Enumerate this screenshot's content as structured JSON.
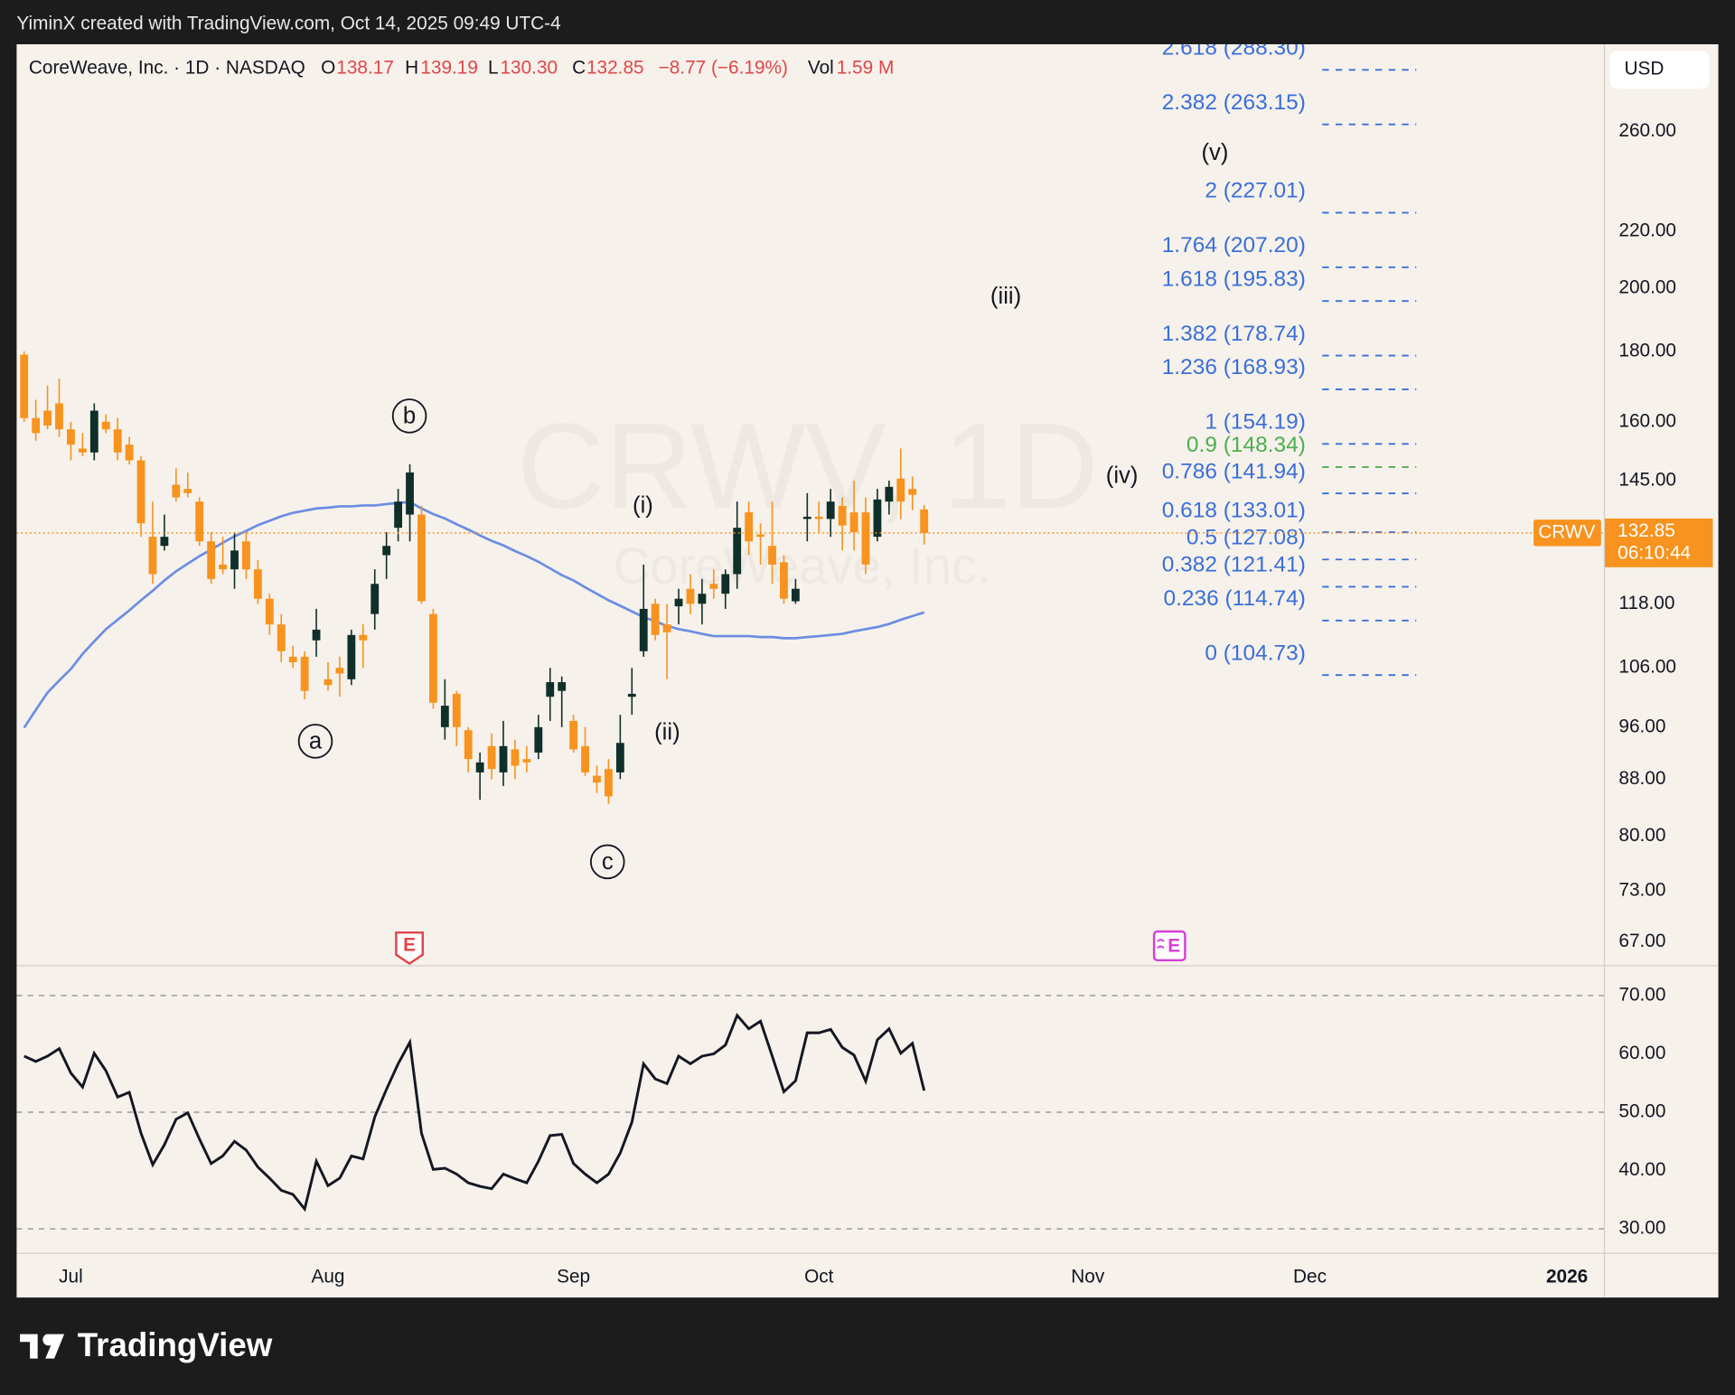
{
  "header": {
    "attribution": "YiminX created with TradingView.com, Oct 14, 2025 09:49 UTC-4"
  },
  "legend": {
    "name": "CoreWeave, Inc. · 1D · NASDAQ",
    "o_key": "O",
    "o": "138.17",
    "h_key": "H",
    "h": "139.19",
    "l_key": "L",
    "l": "130.30",
    "c_key": "C",
    "c": "132.85",
    "change": "−8.77 (−6.19%)",
    "vol_key": "Vol",
    "vol": "1.59 M"
  },
  "currency": "USD",
  "watermark": {
    "symbol": "CRWV, 1D",
    "name": "CoreWeave, Inc."
  },
  "price_tag": {
    "symbol": "CRWV",
    "price": 132.85,
    "countdown": "06:10:44",
    "color": "#f7931e"
  },
  "events": [
    "E",
    "E"
  ],
  "footer": {
    "brand": "TradingView"
  },
  "chart_data": [
    {
      "type": "candlestick",
      "log_scale": true,
      "up_color": "#0f2f2a",
      "down_color": "#f7931e",
      "open": [
        179,
        161,
        163,
        165,
        158,
        153,
        152,
        160,
        158,
        154,
        150,
        132,
        130,
        144,
        143,
        140,
        131,
        126,
        125,
        131,
        125,
        119,
        114,
        108,
        108,
        111,
        104,
        106,
        104,
        112,
        116,
        128,
        134,
        137,
        137,
        116,
        96,
        101.5,
        95.5,
        89,
        93,
        89,
        92.5,
        91,
        92,
        101,
        102,
        97,
        93,
        88.5,
        89.5,
        89,
        101,
        109,
        118,
        114,
        117.5,
        121,
        118,
        122,
        120,
        124,
        137.5,
        132.5,
        130,
        126.5,
        118.5,
        136,
        136.5,
        136,
        139,
        137.5,
        137.5,
        132,
        140,
        145.5,
        143,
        138.17
      ],
      "high": [
        180,
        166,
        170,
        172,
        160,
        157,
        165,
        162,
        161,
        156,
        151,
        140,
        137,
        148,
        147,
        141,
        133,
        132,
        133,
        133,
        127,
        120,
        116,
        110,
        109,
        117,
        107,
        108,
        113,
        114,
        125,
        133,
        143,
        149,
        139,
        117,
        104,
        102,
        96,
        92,
        95,
        97,
        94,
        93,
        98,
        106,
        104.5,
        98,
        96,
        90,
        91,
        98,
        106,
        126,
        119,
        118,
        121,
        124,
        123,
        125,
        125,
        140,
        140,
        135,
        140,
        128,
        123,
        142,
        140,
        143,
        141,
        145,
        141,
        143,
        145,
        153,
        146,
        139.19
      ],
      "low": [
        160,
        155,
        158,
        156,
        150,
        151,
        150,
        157,
        150,
        149,
        132,
        122,
        129,
        140,
        141,
        130,
        122,
        124,
        121,
        123,
        118,
        112,
        107,
        106,
        100.6,
        108,
        102,
        101,
        103,
        106,
        113,
        123,
        131,
        131,
        118,
        99,
        94,
        93,
        89,
        85,
        88,
        87,
        88,
        89,
        91,
        97,
        96,
        92,
        88.5,
        86,
        84.4,
        88,
        98,
        108,
        111,
        104,
        114,
        116,
        114,
        119,
        117,
        121,
        128,
        126,
        122,
        118,
        118,
        131,
        133,
        132,
        129,
        129,
        124,
        131,
        137,
        136,
        138,
        130.3
      ],
      "close": [
        161,
        157,
        159,
        158,
        154,
        152,
        163,
        158,
        152,
        150,
        135,
        124,
        132,
        141,
        142,
        131,
        123,
        125,
        129,
        125,
        119,
        114,
        109,
        107,
        102,
        113,
        103,
        105,
        112,
        111,
        122,
        130,
        140,
        147,
        118.5,
        100,
        99.5,
        96,
        91,
        90.5,
        89.5,
        93,
        90,
        90.5,
        96,
        103.5,
        103.5,
        92.5,
        89,
        87.5,
        85.5,
        93.5,
        101.5,
        117,
        112,
        112.5,
        119,
        118,
        120,
        121,
        124,
        134,
        131,
        132,
        126,
        119,
        121,
        136.5,
        136,
        140,
        134.5,
        133,
        126,
        140.5,
        143.5,
        140,
        141.62,
        132.85
      ],
      "ma": {
        "color": "#6b8de3",
        "values": [
          95.9,
          98.8,
          101.7,
          103.8,
          105.8,
          108.5,
          110.8,
          113.1,
          114.9,
          116.7,
          118.7,
          120.6,
          122.7,
          124.6,
          126.2,
          127.8,
          129.2,
          130.7,
          132.1,
          133.3,
          134.6,
          135.6,
          136.6,
          137.4,
          137.9,
          138.4,
          138.6,
          138.9,
          138.9,
          139.1,
          139.1,
          139.4,
          139.7,
          139.9,
          138.4,
          137.1,
          136.1,
          134.8,
          133.6,
          132.3,
          131.1,
          130.1,
          128.9,
          127.8,
          126.6,
          125.2,
          123.8,
          122.7,
          121.3,
          120,
          118.7,
          117.6,
          116.5,
          115.4,
          114.6,
          113.7,
          113.1,
          112.7,
          112.2,
          111.8,
          111.8,
          111.8,
          111.8,
          111.6,
          111.6,
          111.4,
          111.4,
          111.6,
          111.8,
          112,
          112.2,
          112.7,
          113.1,
          113.5,
          114.1,
          114.9,
          115.6,
          116.3
        ]
      },
      "xlim": [
        -0.64,
        135.2
      ],
      "ylim": [
        64.4,
        300.9
      ],
      "yticks": [
        {
          "value": 260,
          "label": "260.00"
        },
        {
          "value": 220,
          "label": "220.00"
        },
        {
          "value": 200,
          "label": "200.00"
        },
        {
          "value": 180,
          "label": "180.00"
        },
        {
          "value": 160,
          "label": "160.00"
        },
        {
          "value": 145,
          "label": "145.00"
        },
        {
          "value": 118,
          "label": "118.00"
        },
        {
          "value": 106,
          "label": "106.00"
        },
        {
          "value": 96,
          "label": "96.00"
        },
        {
          "value": 88,
          "label": "88.00"
        },
        {
          "value": 80,
          "label": "80.00"
        },
        {
          "value": 73,
          "label": "73.00"
        },
        {
          "value": 67,
          "label": "67.00"
        }
      ],
      "fib_levels": [
        {
          "value": 288.3,
          "label": "2.618 (288.30)",
          "color": "#3a6fd8"
        },
        {
          "value": 263.15,
          "label": "2.382 (263.15)",
          "color": "#3a6fd8"
        },
        {
          "value": 227.01,
          "label": "2 (227.01)",
          "color": "#3a6fd8"
        },
        {
          "value": 207.2,
          "label": "1.764 (207.20)",
          "color": "#3a6fd8"
        },
        {
          "value": 195.83,
          "label": "1.618 (195.83)",
          "color": "#3a6fd8"
        },
        {
          "value": 178.74,
          "label": "1.382 (178.74)",
          "color": "#3a6fd8"
        },
        {
          "value": 168.93,
          "label": "1.236 (168.93)",
          "color": "#3a6fd8"
        },
        {
          "value": 154.19,
          "label": "1 (154.19)",
          "color": "#3a6fd8"
        },
        {
          "value": 148.34,
          "label": "0.9 (148.34)",
          "color": "#4caf50"
        },
        {
          "value": 141.94,
          "label": "0.786 (141.94)",
          "color": "#3a6fd8"
        },
        {
          "value": 133.01,
          "label": "0.618 (133.01)",
          "color": "#3a6fd8"
        },
        {
          "value": 127.08,
          "label": "0.5 (127.08)",
          "color": "#3a6fd8"
        },
        {
          "value": 121.41,
          "label": "0.382 (121.41)",
          "color": "#3a6fd8"
        },
        {
          "value": 114.74,
          "label": "0.236 (114.74)",
          "color": "#3a6fd8"
        },
        {
          "value": 104.73,
          "label": "0 (104.73)",
          "color": "#3a6fd8"
        }
      ],
      "annotations": [
        "a",
        "b",
        "c",
        "(i)",
        "(ii)",
        "(iii)",
        "(iv)",
        "(v)"
      ]
    },
    {
      "type": "line",
      "color": "#131722",
      "values": [
        59.6,
        58.7,
        59.6,
        60.9,
        56.7,
        54.3,
        60.1,
        57.1,
        52.6,
        53.4,
        46.4,
        41,
        44.4,
        48.8,
        49.9,
        45.4,
        41.2,
        42.5,
        45,
        43.5,
        40.6,
        38.7,
        36.6,
        35.9,
        33.4,
        41.6,
        37.4,
        38.7,
        42.5,
        42,
        49.2,
        53.9,
        58.3,
        62,
        46.4,
        40.2,
        40.4,
        39.4,
        37.9,
        37.3,
        36.9,
        39.4,
        38.6,
        37.9,
        41.6,
        46,
        46.2,
        41.2,
        39.4,
        37.9,
        39.4,
        43,
        48.3,
        58.3,
        55.7,
        54.9,
        59.6,
        58.3,
        59.6,
        60,
        61.5,
        66.6,
        64.3,
        65.6,
        59.6,
        53.5,
        55.4,
        63.6,
        63.6,
        64.2,
        61.1,
        59.8,
        55.3,
        62.4,
        64.3,
        60.1,
        61.8,
        53.7
      ],
      "levels": [
        70,
        50,
        30
      ],
      "xlim": [
        -0.64,
        135.2
      ],
      "ylim": [
        25.8,
        75.1
      ],
      "yticks": [
        {
          "value": 70,
          "label": "70.00"
        },
        {
          "value": 60,
          "label": "60.00"
        },
        {
          "value": 50,
          "label": "50.00"
        },
        {
          "value": 40,
          "label": "40.00"
        },
        {
          "value": 30,
          "label": "30.00"
        }
      ],
      "xticks": [
        {
          "value": 4,
          "label": "Jul"
        },
        {
          "value": 26,
          "label": "Aug"
        },
        {
          "value": 47,
          "label": "Sep"
        },
        {
          "value": 68,
          "label": "Oct"
        },
        {
          "value": 91,
          "label": "Nov"
        },
        {
          "value": 110,
          "label": "Dec"
        },
        {
          "value": 132,
          "label": "2026"
        }
      ]
    }
  ]
}
